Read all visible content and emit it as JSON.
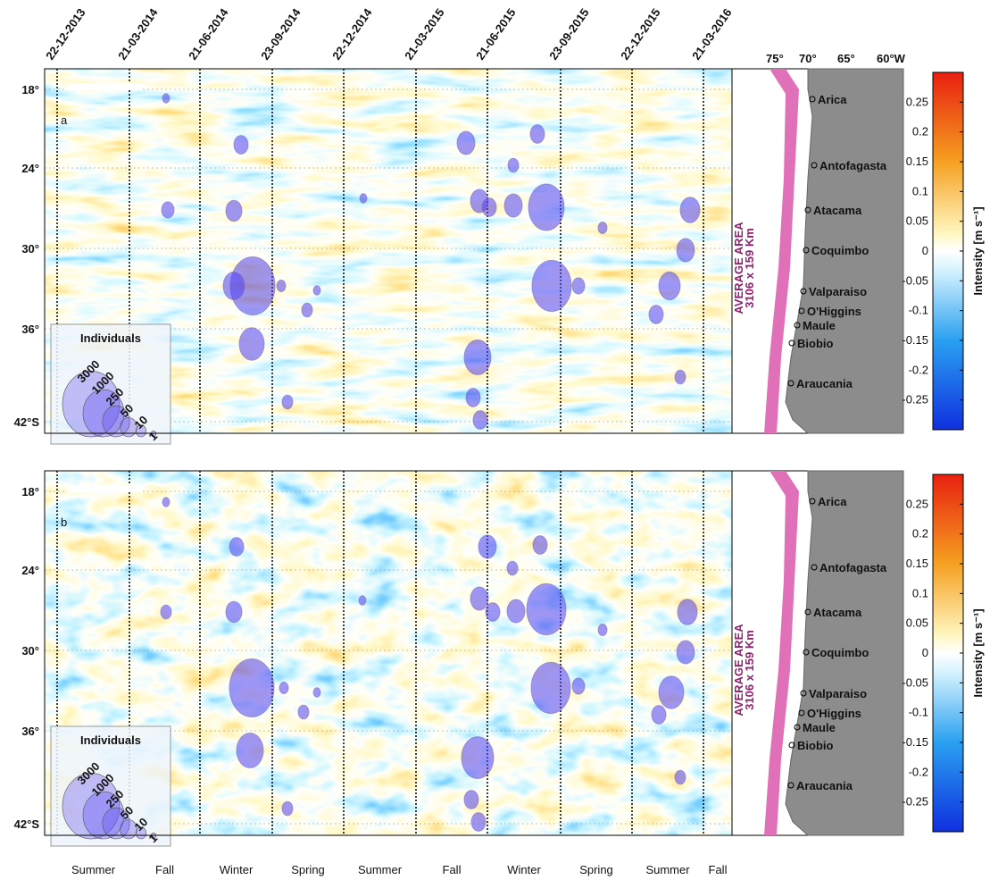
{
  "panels": [
    {
      "label": "a"
    },
    {
      "label": "b"
    }
  ],
  "dates": [
    "22-12-2013",
    "21-03-2014",
    "21-06-2014",
    "23-09-2014",
    "22-12-2014",
    "21-03-2015",
    "21-06-2015",
    "23-09-2015",
    "22-12-2015",
    "21-03-2016"
  ],
  "latitudes": [
    "18°",
    "24°",
    "30°",
    "36°",
    "42°S"
  ],
  "seasons": [
    "Summer",
    "Fall",
    "Winter",
    "Spring",
    "Summer",
    "Fall",
    "Winter",
    "Spring",
    "Summer",
    "Fall"
  ],
  "legend": {
    "title": "Individuals",
    "sizes": [
      3000,
      1000,
      250,
      50,
      10,
      1
    ]
  },
  "map": {
    "longitudes": [
      "75°",
      "70°",
      "65°",
      "60°W"
    ],
    "cities": [
      "Arica",
      "Antofagasta",
      "Atacama",
      "Coquimbo",
      "Valparaiso",
      "O'Higgins",
      "Maule",
      "Biobio",
      "Araucania"
    ],
    "area_title": "AVERAGE AREA",
    "area_size": "3106 x 159 Km"
  },
  "colorbar": {
    "label": "Intensity [m s⁻¹]",
    "ylim": [
      -0.3,
      0.3
    ],
    "yticks": [
      0.25,
      0.2,
      0.15,
      0.1,
      0.05,
      0,
      -0.05,
      -0.1,
      -0.15,
      -0.2,
      -0.25
    ]
  }
}
